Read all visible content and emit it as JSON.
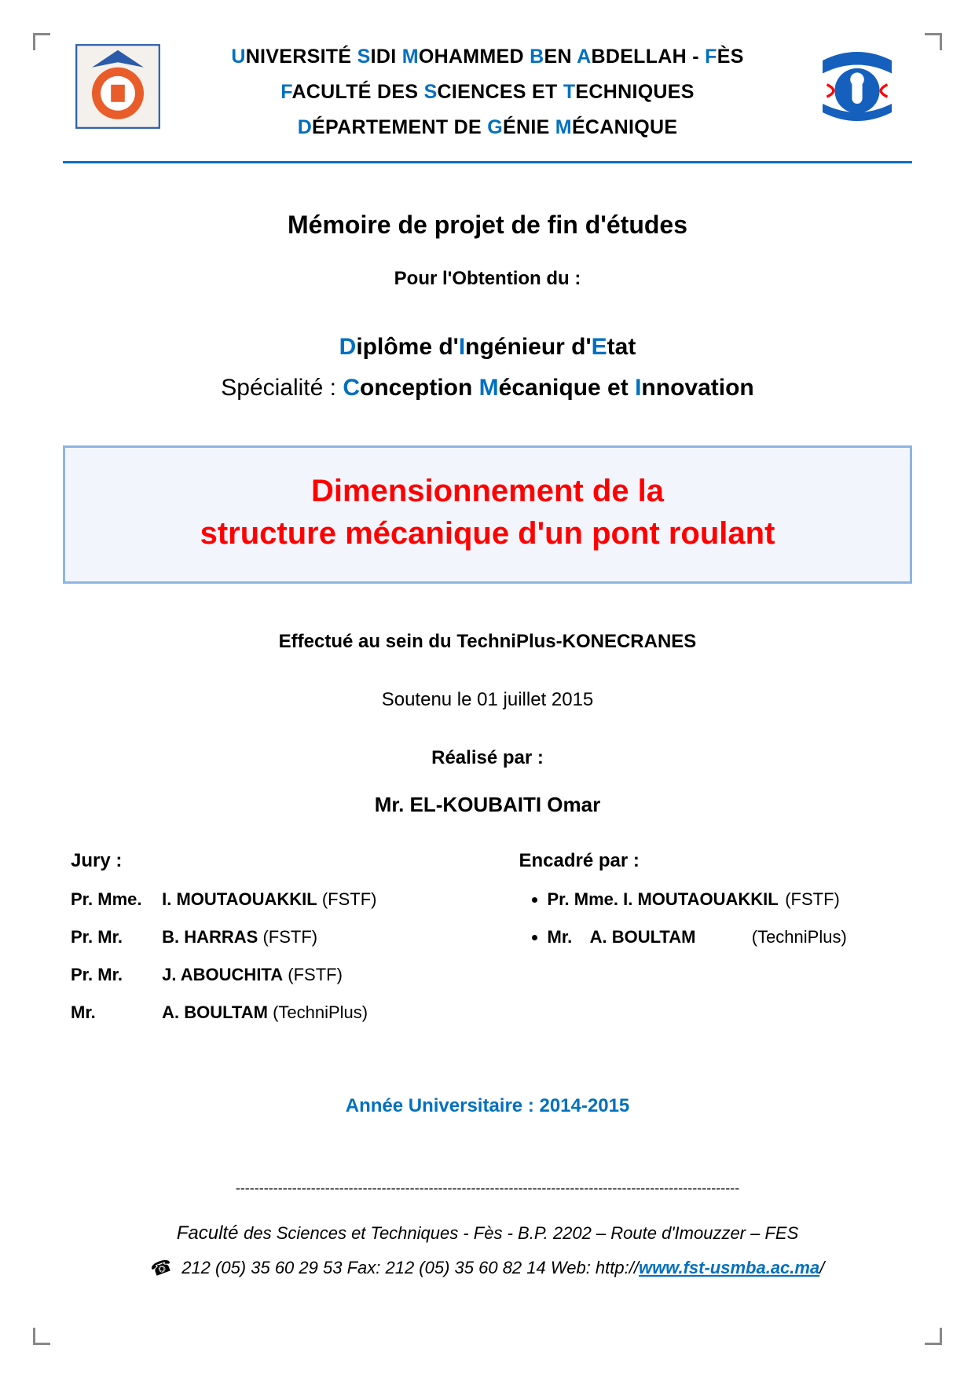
{
  "colors": {
    "accent_blue": "#0070c0",
    "title_red": "#ff0000",
    "title_border": "#8eb4e3",
    "title_bg": "#f2f6fc",
    "text": "#000000",
    "corner": "#888888"
  },
  "header": {
    "line1_parts": [
      "U",
      "NIVERSITÉ ",
      "S",
      "IDI ",
      "M",
      "OHAMMED ",
      "B",
      "EN ",
      "A",
      "BDELLAH - ",
      "F",
      "ÈS"
    ],
    "line2_parts": [
      "F",
      "ACULTÉ DES ",
      "S",
      "CIENCES ET ",
      "T",
      "ECHNIQUES"
    ],
    "line3_parts": [
      "D",
      "ÉPARTEMENT DE ",
      "G",
      "ÉNIE ",
      "M",
      "ÉCANIQUE"
    ]
  },
  "main": {
    "memoire": "Mémoire de projet de fin d'études",
    "obtention": "Pour l'Obtention du :",
    "diplome_parts": [
      "D",
      "iplôme d'",
      "I",
      "ngénieur d'",
      "E",
      "tat"
    ],
    "specialite_label": "Spécialité : ",
    "specialite_parts": [
      "C",
      "onception ",
      "M",
      "écanique et ",
      "I",
      "nnovation"
    ],
    "title_line1": "Dimensionnement de la",
    "title_line2": "structure mécanique d'un pont roulant",
    "effectue": "Effectué au sein du TechniPlus-KONECRANES",
    "soutenu": "Soutenu le 01 juillet 2015",
    "realise": "Réalisé par :",
    "author": "Mr. EL-KOUBAITI Omar"
  },
  "jury": {
    "heading": "Jury :",
    "members": [
      {
        "prefix": "Pr. Mme.",
        "name": "I. MOUTAOUAKKIL",
        "affiliation": "(FSTF)"
      },
      {
        "prefix": "Pr. Mr.",
        "name": "B. HARRAS",
        "affiliation": "(FSTF)"
      },
      {
        "prefix": "Pr. Mr.",
        "name": "J. ABOUCHITA",
        "affiliation": "(FSTF)"
      },
      {
        "prefix": "Mr.",
        "name": "A. BOULTAM",
        "affiliation": "(TechniPlus)"
      }
    ]
  },
  "encadre": {
    "heading": "Encadré par :",
    "members": [
      {
        "prefix": "Pr. Mme.",
        "name": "I. MOUTAOUAKKIL",
        "affiliation": "(FSTF)"
      },
      {
        "prefix": "Mr.",
        "name": "A. BOULTAM",
        "affiliation": "(TechniPlus)"
      }
    ]
  },
  "annee": "Année Universitaire : 2014-2015",
  "separator": "-----------------------------------------------------------------------------------------------------------",
  "footer": {
    "line1_a": "Faculté ",
    "line1_b": "des Sciences et Techniques - Fès - B.P. 2202 – Route d'Imouzzer – FES",
    "tel": "212 (05) 35 60 29 53 Fax: 212 (05) 35 60 82 14 Web: http://",
    "url_text": "www.fst-usmba.ac.ma",
    "trail": "/"
  }
}
